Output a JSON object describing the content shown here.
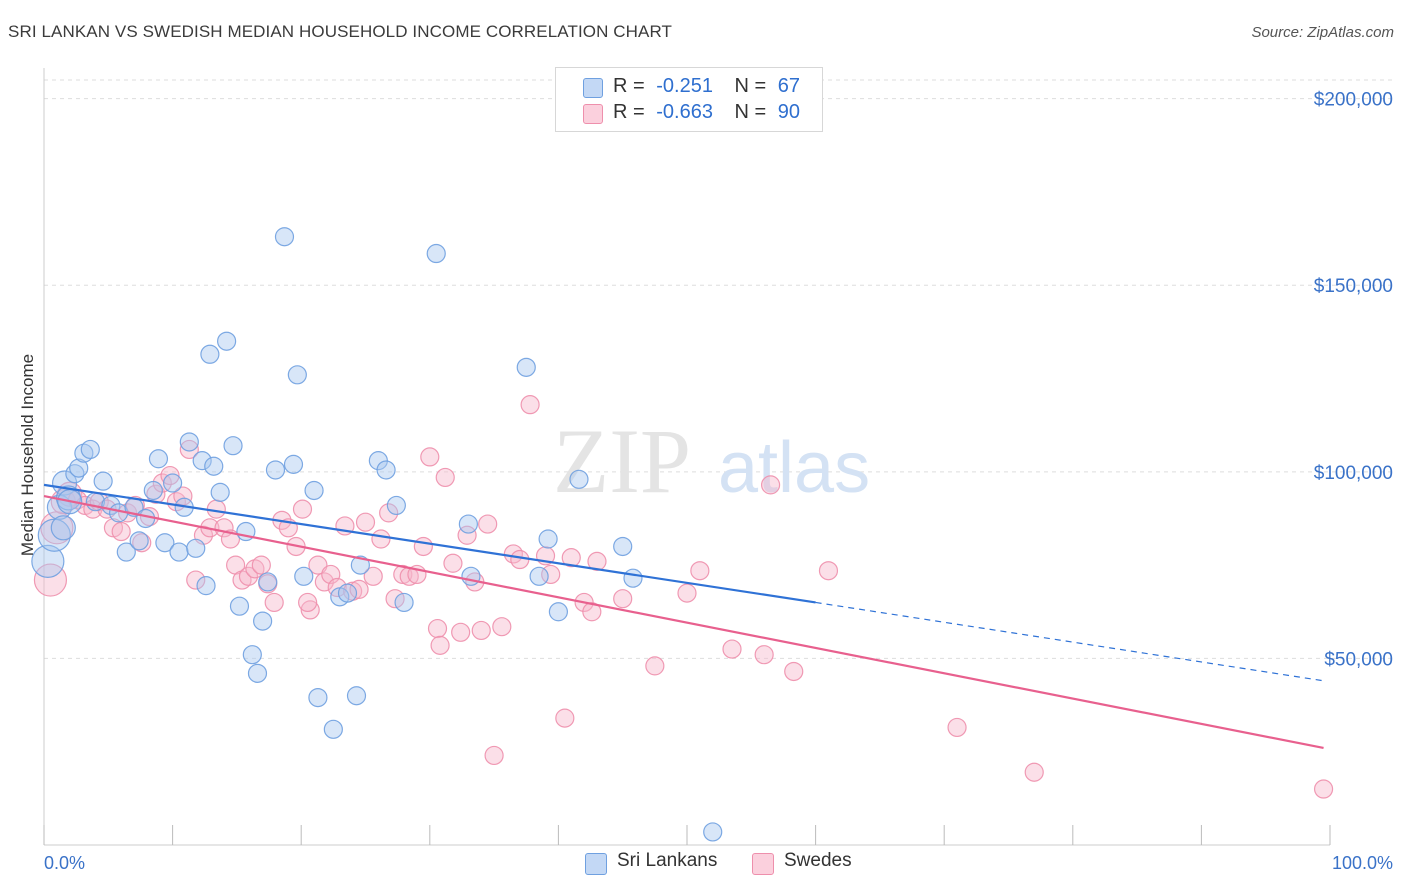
{
  "title": "SRI LANKAN VS SWEDISH MEDIAN HOUSEHOLD INCOME CORRELATION CHART",
  "source": "Source: ZipAtlas.com",
  "watermark": {
    "zip": "ZIP",
    "atlas": "atlas"
  },
  "legend": {
    "rows": [
      {
        "r_label": "R =",
        "r_value": "-0.251",
        "n_label": "N =",
        "n_value": "67",
        "color": "#a8c8f0"
      },
      {
        "r_label": "R =",
        "r_value": "-0.663",
        "n_label": "N =",
        "n_value": "90",
        "color": "#f7b8cb"
      }
    ]
  },
  "bottom_legend": {
    "items": [
      "Sri Lankans",
      "Swedes"
    ]
  },
  "colors": {
    "blue_fill": "#a8c8f0",
    "blue_stroke": "#6fa0e0",
    "blue_line": "#2f72d6",
    "pink_fill": "#f7b8cb",
    "pink_stroke": "#ee8fac",
    "pink_line": "#e8608e",
    "axis_text": "#3a72c8",
    "grid": "#dddddd"
  },
  "chart_data": {
    "type": "scatter",
    "title": "SRI LANKAN VS SWEDISH MEDIAN HOUSEHOLD INCOME CORRELATION CHART",
    "xlabel": "",
    "ylabel": "Median Household Income",
    "xlim": [
      0,
      100
    ],
    "ylim": [
      0,
      205000
    ],
    "x_tick_labels": [
      "0.0%",
      "100.0%"
    ],
    "y_ticks": [
      50000,
      100000,
      150000,
      200000
    ],
    "y_tick_labels": [
      "$50,000",
      "$100,000",
      "$150,000",
      "$200,000"
    ],
    "grid": true,
    "legend_position": "top-center",
    "series": [
      {
        "name": "Sri Lankans",
        "color": "#a8c8f0",
        "points": [
          [
            0.3,
            76000
          ],
          [
            0.8,
            83000
          ],
          [
            1.2,
            90500
          ],
          [
            1.6,
            97000
          ],
          [
            1.9,
            93000
          ],
          [
            2.4,
            99500
          ],
          [
            2.7,
            101000
          ],
          [
            3.1,
            105000
          ],
          [
            3.6,
            106000
          ],
          [
            4.0,
            92000
          ],
          [
            4.6,
            97500
          ],
          [
            5.2,
            91000
          ],
          [
            5.8,
            89000
          ],
          [
            6.4,
            78500
          ],
          [
            7.0,
            90500
          ],
          [
            7.4,
            81500
          ],
          [
            7.9,
            87500
          ],
          [
            8.5,
            95000
          ],
          [
            8.9,
            103500
          ],
          [
            9.4,
            81000
          ],
          [
            10.0,
            97000
          ],
          [
            10.5,
            78500
          ],
          [
            10.9,
            90500
          ],
          [
            11.3,
            108000
          ],
          [
            11.8,
            79500
          ],
          [
            12.3,
            103000
          ],
          [
            12.6,
            69500
          ],
          [
            12.9,
            131500
          ],
          [
            13.2,
            101500
          ],
          [
            13.7,
            94500
          ],
          [
            14.2,
            135000
          ],
          [
            14.7,
            107000
          ],
          [
            15.2,
            64000
          ],
          [
            15.7,
            84000
          ],
          [
            16.2,
            51000
          ],
          [
            16.6,
            46000
          ],
          [
            17.0,
            60000
          ],
          [
            17.4,
            70500
          ],
          [
            18.0,
            100500
          ],
          [
            18.7,
            163000
          ],
          [
            19.4,
            102000
          ],
          [
            19.7,
            126000
          ],
          [
            20.2,
            72000
          ],
          [
            21.0,
            95000
          ],
          [
            21.3,
            39500
          ],
          [
            22.5,
            31000
          ],
          [
            23.0,
            66500
          ],
          [
            23.6,
            67500
          ],
          [
            24.3,
            40000
          ],
          [
            24.6,
            75000
          ],
          [
            26.0,
            103000
          ],
          [
            26.6,
            100500
          ],
          [
            27.4,
            91000
          ],
          [
            28.0,
            65000
          ],
          [
            30.5,
            158500
          ],
          [
            33.0,
            86000
          ],
          [
            33.2,
            72000
          ],
          [
            37.5,
            128000
          ],
          [
            38.5,
            72000
          ],
          [
            39.2,
            82000
          ],
          [
            40.0,
            62500
          ],
          [
            41.6,
            98000
          ],
          [
            45.0,
            80000
          ],
          [
            45.8,
            71500
          ],
          [
            52.0,
            3500
          ],
          [
            1.5,
            85000
          ],
          [
            2.0,
            92000
          ]
        ]
      },
      {
        "name": "Swedes",
        "color": "#f7b8cb",
        "points": [
          [
            0.5,
            71000
          ],
          [
            1.0,
            85000
          ],
          [
            1.5,
            92000
          ],
          [
            2.0,
            94000
          ],
          [
            2.6,
            92500
          ],
          [
            3.2,
            91000
          ],
          [
            3.8,
            90000
          ],
          [
            4.3,
            92000
          ],
          [
            4.9,
            90000
          ],
          [
            5.4,
            85000
          ],
          [
            6.0,
            84000
          ],
          [
            6.5,
            89000
          ],
          [
            7.1,
            91000
          ],
          [
            7.6,
            81000
          ],
          [
            8.2,
            88000
          ],
          [
            8.7,
            94000
          ],
          [
            9.2,
            97000
          ],
          [
            9.8,
            99000
          ],
          [
            10.3,
            92000
          ],
          [
            10.8,
            93500
          ],
          [
            11.3,
            106000
          ],
          [
            11.8,
            71000
          ],
          [
            12.4,
            83000
          ],
          [
            12.9,
            85000
          ],
          [
            13.4,
            90000
          ],
          [
            14.0,
            85000
          ],
          [
            14.5,
            82000
          ],
          [
            14.9,
            75000
          ],
          [
            15.4,
            71000
          ],
          [
            15.9,
            72000
          ],
          [
            16.4,
            74000
          ],
          [
            16.9,
            75000
          ],
          [
            17.4,
            70000
          ],
          [
            17.9,
            65000
          ],
          [
            18.5,
            87000
          ],
          [
            19.0,
            85000
          ],
          [
            19.6,
            80000
          ],
          [
            20.1,
            90000
          ],
          [
            20.7,
            63000
          ],
          [
            21.3,
            75000
          ],
          [
            21.8,
            70500
          ],
          [
            22.3,
            72500
          ],
          [
            22.8,
            69000
          ],
          [
            23.4,
            85500
          ],
          [
            24.0,
            68000
          ],
          [
            24.5,
            68500
          ],
          [
            25.0,
            86500
          ],
          [
            25.6,
            72000
          ],
          [
            26.2,
            82000
          ],
          [
            26.8,
            89000
          ],
          [
            27.3,
            66000
          ],
          [
            27.9,
            72500
          ],
          [
            28.4,
            72000
          ],
          [
            29.0,
            72500
          ],
          [
            29.5,
            80000
          ],
          [
            30.0,
            104000
          ],
          [
            30.6,
            58000
          ],
          [
            31.2,
            98500
          ],
          [
            31.8,
            75500
          ],
          [
            32.4,
            57000
          ],
          [
            32.9,
            83000
          ],
          [
            33.5,
            70500
          ],
          [
            34.0,
            57500
          ],
          [
            34.5,
            86000
          ],
          [
            35.0,
            24000
          ],
          [
            35.6,
            58500
          ],
          [
            36.5,
            78000
          ],
          [
            37.0,
            76500
          ],
          [
            37.8,
            118000
          ],
          [
            39.0,
            77500
          ],
          [
            39.4,
            72500
          ],
          [
            40.5,
            34000
          ],
          [
            41.0,
            77000
          ],
          [
            42.0,
            65000
          ],
          [
            42.6,
            62500
          ],
          [
            43.0,
            76000
          ],
          [
            45.0,
            66000
          ],
          [
            47.5,
            48000
          ],
          [
            50.0,
            67500
          ],
          [
            51.0,
            73500
          ],
          [
            53.5,
            52500
          ],
          [
            56.0,
            51000
          ],
          [
            56.5,
            96500
          ],
          [
            58.3,
            46500
          ],
          [
            61.0,
            73500
          ],
          [
            71.0,
            31500
          ],
          [
            77.0,
            19500
          ],
          [
            99.5,
            15000
          ],
          [
            20.5,
            65000
          ],
          [
            30.8,
            53500
          ]
        ]
      }
    ],
    "trendlines": [
      {
        "series": "Sri Lankans",
        "solid": [
          [
            0,
            96500
          ],
          [
            60,
            65000
          ]
        ],
        "dashed": [
          [
            60,
            65000
          ],
          [
            99.5,
            44000
          ]
        ]
      },
      {
        "series": "Swedes",
        "solid": [
          [
            0,
            93500
          ],
          [
            99.5,
            26000
          ]
        ]
      }
    ]
  }
}
